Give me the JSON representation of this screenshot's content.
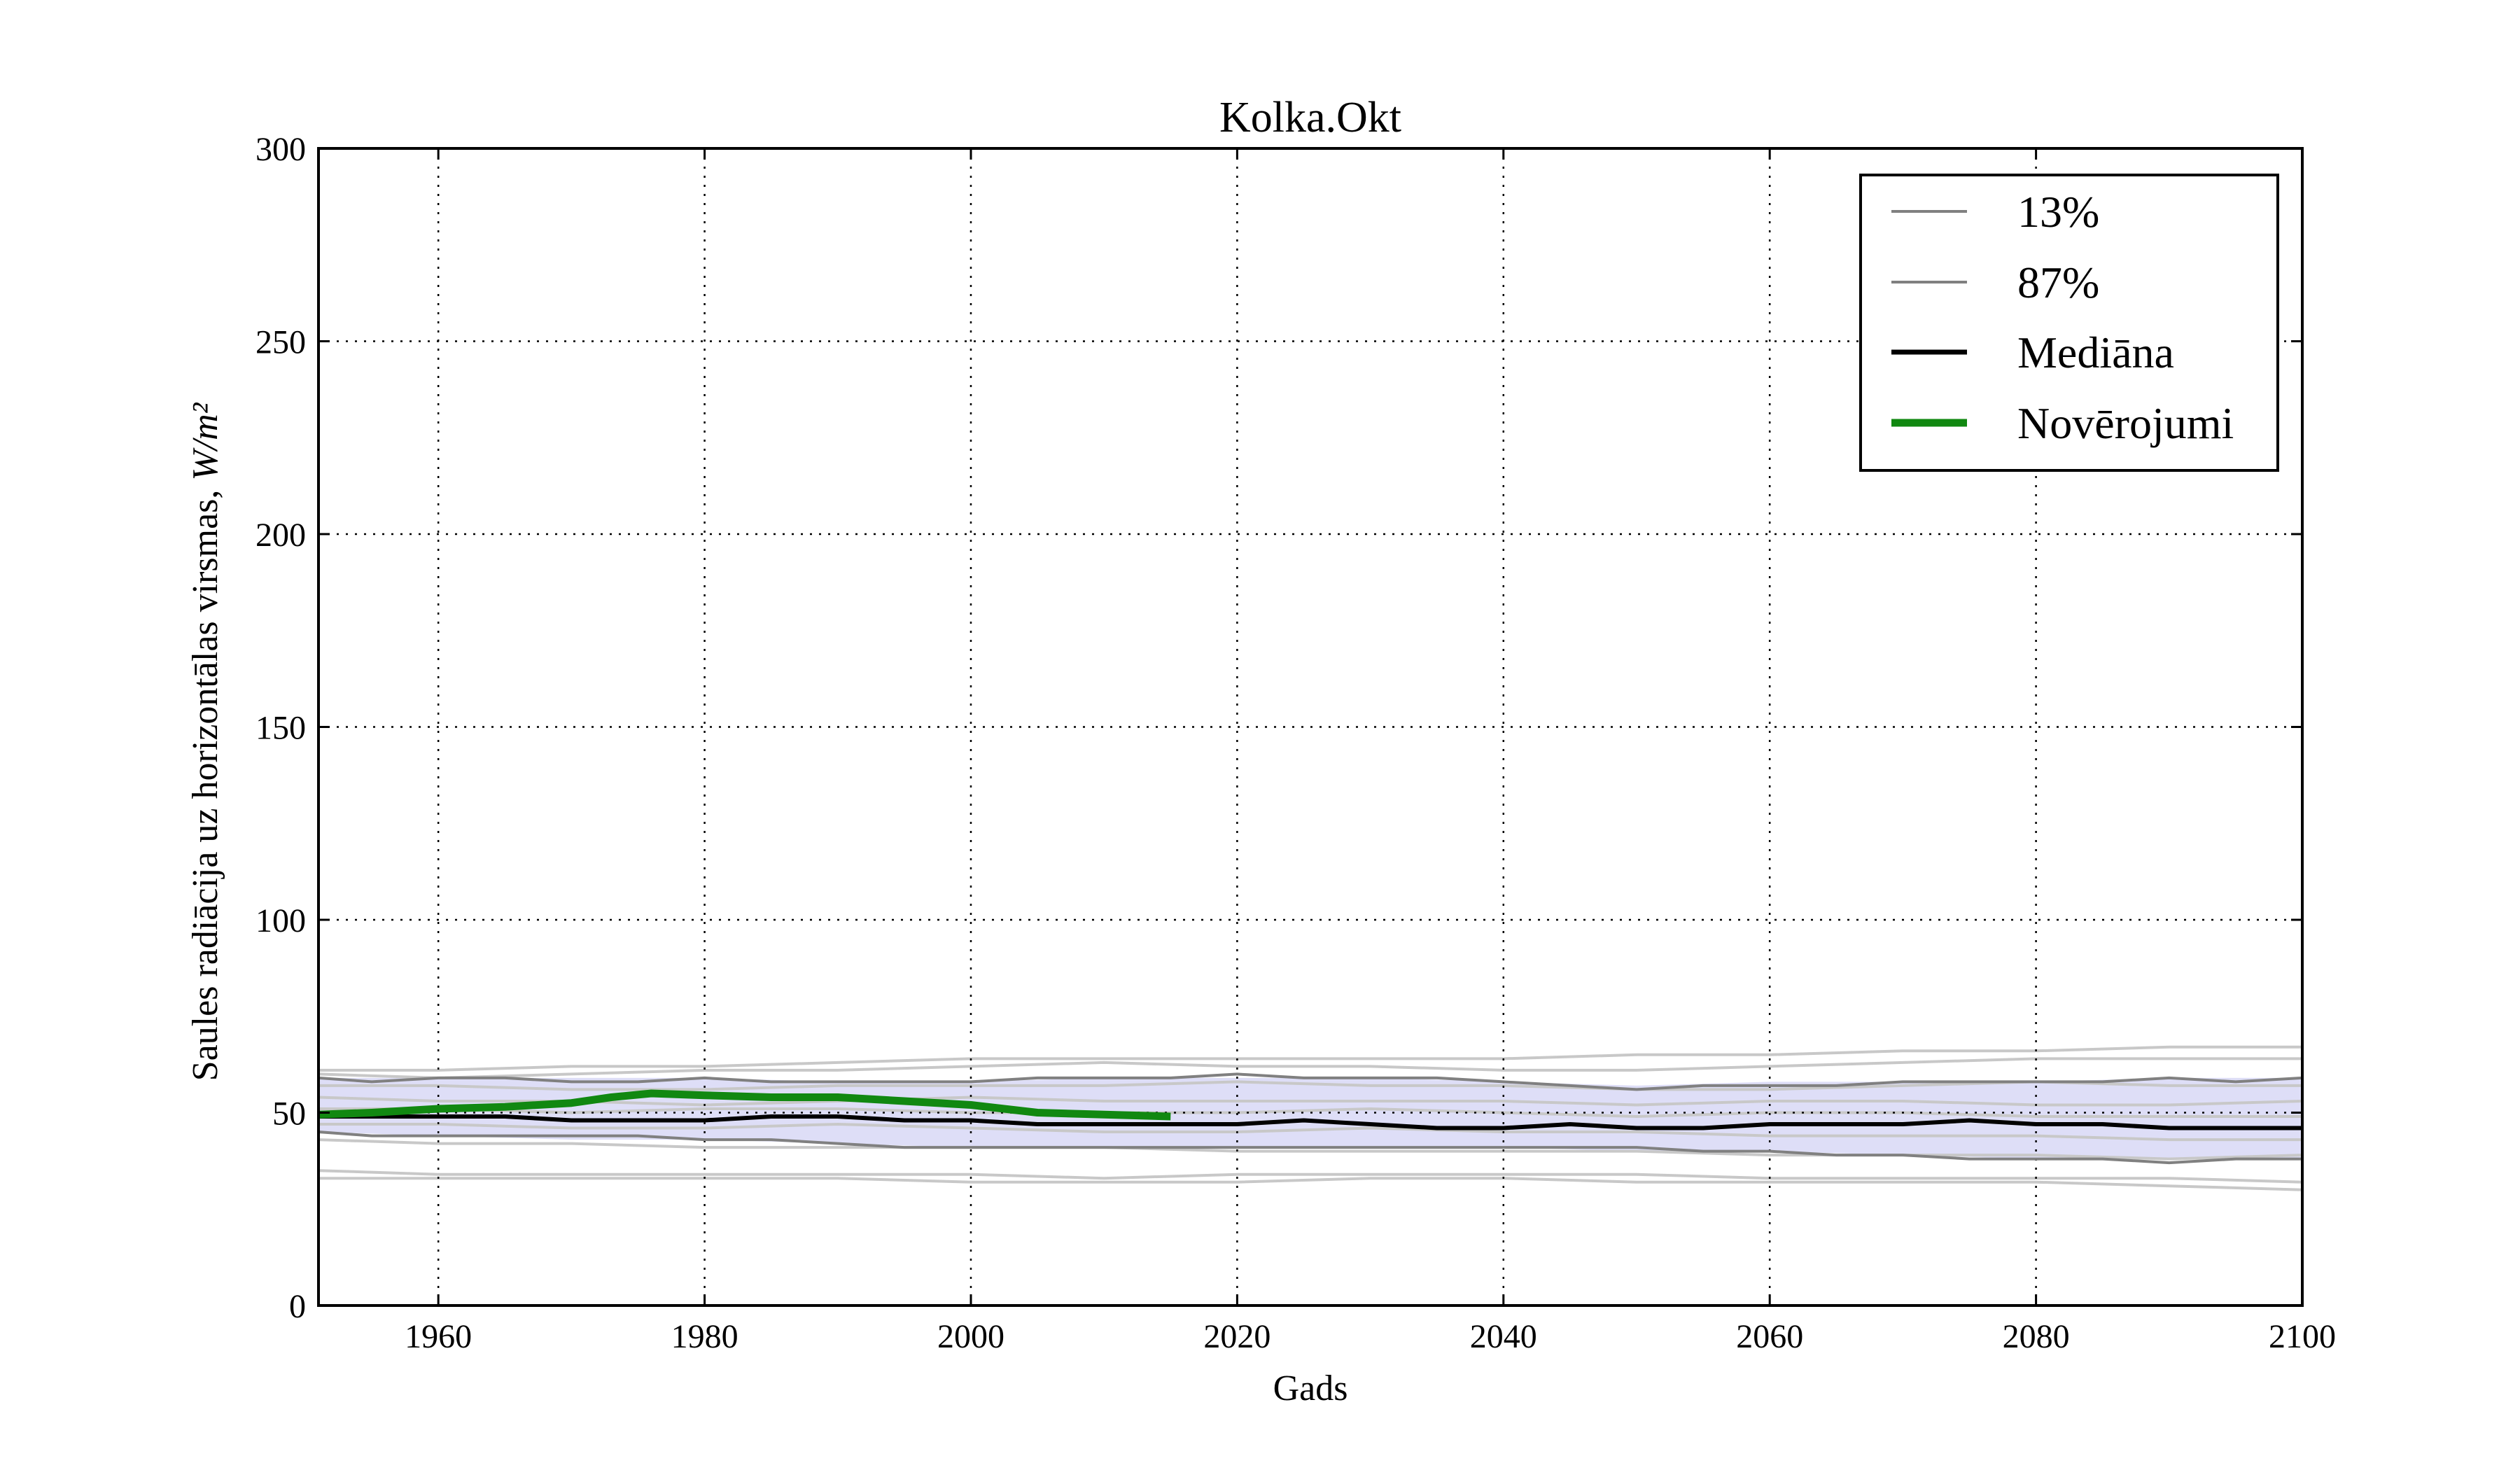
{
  "chart_data": {
    "type": "line",
    "title": "Kolka.Okt",
    "xlabel": "Gads",
    "ylabel": "Saules radiācija uz horizontālas virsmas, ",
    "ylabel_unit": "W/m²",
    "xlim": [
      1951,
      2100
    ],
    "ylim": [
      0,
      300
    ],
    "xticks": [
      1960,
      1980,
      2000,
      2020,
      2040,
      2060,
      2080,
      2100
    ],
    "yticks": [
      0,
      50,
      100,
      150,
      200,
      250,
      300
    ],
    "grid": true,
    "legend_position": "top-right",
    "band": {
      "color": "#d8d8f6",
      "x": [
        1951,
        1960,
        1970,
        1980,
        1990,
        2000,
        2010,
        2020,
        2030,
        2040,
        2050,
        2060,
        2070,
        2080,
        2090,
        2100
      ],
      "lower": [
        45,
        44,
        43,
        43,
        42,
        41,
        41,
        41,
        41,
        41,
        40,
        40,
        39,
        38,
        38,
        38
      ],
      "upper": [
        59,
        59,
        59,
        59,
        58,
        58,
        59,
        59,
        59,
        58,
        57,
        58,
        58,
        58,
        59,
        59
      ]
    },
    "series": [
      {
        "name": "13%",
        "color": "#808080",
        "width": 4,
        "x": [
          1951,
          1955,
          1960,
          1965,
          1970,
          1975,
          1980,
          1985,
          1990,
          1995,
          2000,
          2005,
          2010,
          2015,
          2020,
          2025,
          2030,
          2035,
          2040,
          2045,
          2050,
          2055,
          2060,
          2065,
          2070,
          2075,
          2080,
          2085,
          2090,
          2095,
          2100
        ],
        "y": [
          45,
          44,
          44,
          44,
          44,
          44,
          43,
          43,
          42,
          41,
          41,
          41,
          41,
          41,
          41,
          41,
          41,
          41,
          41,
          41,
          41,
          40,
          40,
          39,
          39,
          38,
          38,
          38,
          37,
          38,
          38
        ]
      },
      {
        "name": "87%",
        "color": "#808080",
        "width": 4,
        "x": [
          1951,
          1955,
          1960,
          1965,
          1970,
          1975,
          1980,
          1985,
          1990,
          1995,
          2000,
          2005,
          2010,
          2015,
          2020,
          2025,
          2030,
          2035,
          2040,
          2045,
          2050,
          2055,
          2060,
          2065,
          2070,
          2075,
          2080,
          2085,
          2090,
          2095,
          2100
        ],
        "y": [
          59,
          58,
          59,
          59,
          58,
          58,
          59,
          58,
          58,
          58,
          58,
          59,
          59,
          59,
          60,
          59,
          59,
          59,
          58,
          57,
          56,
          57,
          57,
          57,
          58,
          58,
          58,
          58,
          59,
          58,
          59
        ]
      },
      {
        "name": "Mediāna",
        "color": "#000000",
        "width": 6,
        "x": [
          1951,
          1955,
          1960,
          1965,
          1970,
          1975,
          1980,
          1985,
          1990,
          1995,
          2000,
          2005,
          2010,
          2015,
          2020,
          2025,
          2030,
          2035,
          2040,
          2045,
          2050,
          2055,
          2060,
          2065,
          2070,
          2075,
          2080,
          2085,
          2090,
          2095,
          2100
        ],
        "y": [
          49,
          49,
          49,
          49,
          48,
          48,
          48,
          49,
          49,
          48,
          48,
          47,
          47,
          47,
          47,
          48,
          47,
          46,
          46,
          47,
          46,
          46,
          47,
          47,
          47,
          48,
          47,
          47,
          46,
          46,
          46
        ]
      },
      {
        "name": "Novērojumi",
        "color": "#118811",
        "width": 11,
        "x": [
          1951,
          1955,
          1960,
          1965,
          1970,
          1973,
          1976,
          1980,
          1985,
          1990,
          1995,
          2000,
          2005,
          2010,
          2015
        ],
        "y": [
          49.5,
          50,
          51,
          51.5,
          52.5,
          54,
          55,
          54.5,
          54,
          54,
          53,
          52,
          50,
          49.5,
          49
        ]
      }
    ],
    "ensemble_members": {
      "color": "#c8c8c8",
      "x": [
        1951,
        1960,
        1970,
        1980,
        1990,
        2000,
        2010,
        2020,
        2030,
        2040,
        2050,
        2060,
        2070,
        2080,
        2090,
        2100
      ],
      "lines": [
        [
          61,
          61,
          62,
          62,
          63,
          64,
          64,
          64,
          64,
          64,
          65,
          65,
          66,
          66,
          67,
          67
        ],
        [
          60,
          59,
          60,
          61,
          61,
          62,
          63,
          62,
          62,
          61,
          61,
          62,
          63,
          64,
          64,
          64
        ],
        [
          57,
          57,
          56,
          56,
          57,
          57,
          57,
          58,
          57,
          57,
          56,
          56,
          57,
          58,
          57,
          57
        ],
        [
          54,
          53,
          53,
          52,
          53,
          54,
          53,
          53,
          53,
          53,
          52,
          53,
          53,
          52,
          52,
          53
        ],
        [
          51,
          51,
          50,
          51,
          51,
          50,
          50,
          50,
          51,
          50,
          49,
          50,
          50,
          49,
          49,
          49
        ],
        [
          47,
          47,
          46,
          46,
          47,
          46,
          45,
          45,
          46,
          45,
          45,
          44,
          44,
          44,
          43,
          43
        ],
        [
          43,
          42,
          42,
          41,
          41,
          41,
          41,
          40,
          40,
          40,
          40,
          39,
          39,
          39,
          38,
          39
        ],
        [
          35,
          34,
          34,
          34,
          34,
          34,
          33,
          34,
          34,
          34,
          34,
          33,
          33,
          33,
          33,
          32
        ],
        [
          33,
          33,
          33,
          33,
          33,
          32,
          32,
          32,
          33,
          33,
          32,
          32,
          32,
          32,
          31,
          30
        ]
      ]
    }
  }
}
